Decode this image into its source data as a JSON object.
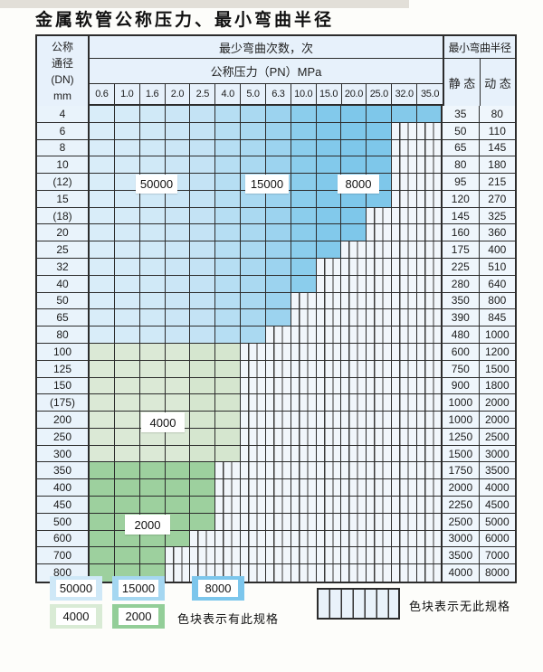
{
  "page": {
    "title": "金属软管公称压力、最小弯曲半径"
  },
  "table": {
    "corner": {
      "line1": "公称",
      "line2": "通径",
      "line3": "(DN)",
      "line4": "mm"
    },
    "header": {
      "cycles": "最少弯曲次数，次",
      "pressure": "公称压力（PN）MPa",
      "radius": "最小弯曲半径",
      "static": "静 态",
      "dynamic": "动 态"
    },
    "pressures": [
      "0.6",
      "1.0",
      "1.6",
      "2.0",
      "2.5",
      "4.0",
      "5.0",
      "6.3",
      "10.0",
      "15.0",
      "20.0",
      "25.0",
      "32.0",
      "35.0"
    ],
    "rows": [
      {
        "dn": "4",
        "band": "blue",
        "colored": 14,
        "max_pn": "35.0",
        "static": "35",
        "dynamic": "80"
      },
      {
        "dn": "6",
        "band": "blue",
        "colored": 12,
        "max_pn": "25.0",
        "static": "50",
        "dynamic": "110"
      },
      {
        "dn": "8",
        "band": "blue",
        "colored": 12,
        "max_pn": "25.0",
        "static": "65",
        "dynamic": "145"
      },
      {
        "dn": "10",
        "band": "blue",
        "colored": 12,
        "max_pn": "25.0",
        "static": "80",
        "dynamic": "180"
      },
      {
        "dn": "(12)",
        "band": "blue",
        "colored": 12,
        "max_pn": "25.0",
        "static": "95",
        "dynamic": "215"
      },
      {
        "dn": "15",
        "band": "blue",
        "colored": 12,
        "max_pn": "25.0",
        "static": "120",
        "dynamic": "270"
      },
      {
        "dn": "(18)",
        "band": "blue",
        "colored": 11,
        "max_pn": "20.0",
        "static": "145",
        "dynamic": "325"
      },
      {
        "dn": "20",
        "band": "blue",
        "colored": 11,
        "max_pn": "20.0",
        "static": "160",
        "dynamic": "360"
      },
      {
        "dn": "25",
        "band": "blue",
        "colored": 10,
        "max_pn": "15.0",
        "static": "175",
        "dynamic": "400"
      },
      {
        "dn": "32",
        "band": "blue",
        "colored": 9,
        "max_pn": "10.0",
        "static": "225",
        "dynamic": "510"
      },
      {
        "dn": "40",
        "band": "blue",
        "colored": 9,
        "max_pn": "10.0",
        "static": "280",
        "dynamic": "640"
      },
      {
        "dn": "50",
        "band": "blue",
        "colored": 8,
        "max_pn": "6.3",
        "static": "350",
        "dynamic": "800"
      },
      {
        "dn": "65",
        "band": "blue",
        "colored": 8,
        "max_pn": "6.3",
        "static": "390",
        "dynamic": "845"
      },
      {
        "dn": "80",
        "band": "blue",
        "colored": 7,
        "max_pn": "5.0",
        "static": "480",
        "dynamic": "1000"
      },
      {
        "dn": "100",
        "band": "green-light",
        "colored": 6,
        "max_pn": "4.0",
        "static": "600",
        "dynamic": "1200"
      },
      {
        "dn": "125",
        "band": "green-light",
        "colored": 6,
        "max_pn": "4.0",
        "static": "750",
        "dynamic": "1500"
      },
      {
        "dn": "150",
        "band": "green-light",
        "colored": 6,
        "max_pn": "4.0",
        "static": "900",
        "dynamic": "1800"
      },
      {
        "dn": "(175)",
        "band": "green-light",
        "colored": 6,
        "max_pn": "4.0",
        "static": "1000",
        "dynamic": "2000"
      },
      {
        "dn": "200",
        "band": "green-light",
        "colored": 6,
        "max_pn": "4.0",
        "static": "1000",
        "dynamic": "2000"
      },
      {
        "dn": "250",
        "band": "green-light",
        "colored": 6,
        "max_pn": "4.0",
        "static": "1250",
        "dynamic": "2500"
      },
      {
        "dn": "300",
        "band": "green-light",
        "colored": 6,
        "max_pn": "4.0",
        "static": "1500",
        "dynamic": "3000"
      },
      {
        "dn": "350",
        "band": "green-dark",
        "colored": 5,
        "max_pn": "2.5",
        "static": "1750",
        "dynamic": "3500"
      },
      {
        "dn": "400",
        "band": "green-dark",
        "colored": 5,
        "max_pn": "2.5",
        "static": "2000",
        "dynamic": "4000"
      },
      {
        "dn": "450",
        "band": "green-dark",
        "colored": 5,
        "max_pn": "2.5",
        "static": "2250",
        "dynamic": "4500"
      },
      {
        "dn": "500",
        "band": "green-dark",
        "colored": 5,
        "max_pn": "2.5",
        "static": "2500",
        "dynamic": "5000"
      },
      {
        "dn": "600",
        "band": "green-dark",
        "colored": 4,
        "max_pn": "2.0",
        "static": "3000",
        "dynamic": "6000"
      },
      {
        "dn": "700",
        "band": "green-dark",
        "colored": 3,
        "max_pn": "1.6",
        "static": "3500",
        "dynamic": "7000"
      },
      {
        "dn": "800",
        "band": "green-dark",
        "colored": 3,
        "max_pn": "1.6",
        "static": "4000",
        "dynamic": "8000"
      }
    ],
    "cycle_labels": [
      "50000",
      "15000",
      "8000",
      "4000",
      "2000"
    ]
  },
  "legend": {
    "swatches": [
      {
        "label": "50000",
        "color": "#cfe8f7"
      },
      {
        "label": "15000",
        "color": "#a5d7f1"
      },
      {
        "label": "8000",
        "color": "#7cc6ec"
      },
      {
        "label": "4000",
        "color": "#d9ebd5"
      },
      {
        "label": "2000",
        "color": "#93ce98"
      }
    ],
    "has_spec_note": "色块表示有此规格",
    "no_spec_note": "色块表示无此规格"
  },
  "colors": {
    "grid": "#2c2c2c",
    "blue_light": "#d9edf9",
    "blue_dark": "#7ec7ea",
    "green_light": "#dbe9d6",
    "green_dark": "#9dd09e",
    "hatch_bg": "#f1f6fb",
    "header_bg": "#e7f1fb"
  }
}
